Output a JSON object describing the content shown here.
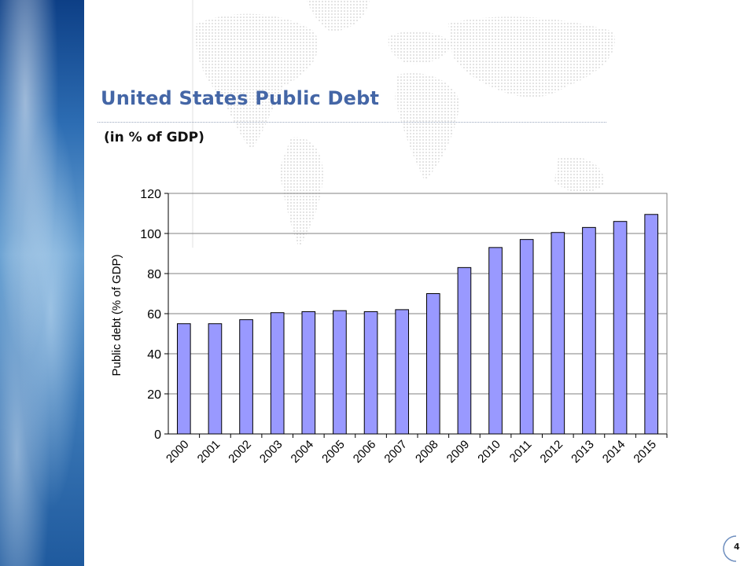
{
  "slide": {
    "title": "United States Public Debt",
    "subtitle": "(in % of GDP)",
    "page_number": "4"
  },
  "colors": {
    "title": "#4466a6",
    "bar_fill": "#9999ff",
    "bar_stroke": "#000000",
    "gridline": "#808080"
  },
  "chart_data": {
    "type": "bar",
    "title": "",
    "xlabel": "",
    "ylabel": "Public debt (% of GDP)",
    "categories": [
      "2000",
      "2001",
      "2002",
      "2003",
      "2004",
      "2005",
      "2006",
      "2007",
      "2008",
      "2009",
      "2010",
      "2011",
      "2012",
      "2013",
      "2014",
      "2015"
    ],
    "values": [
      55,
      55,
      57,
      60.5,
      61,
      61.5,
      61,
      62,
      70,
      83,
      93,
      97,
      100.5,
      103,
      106,
      109.5
    ],
    "ylim": [
      0,
      120
    ],
    "yticks": [
      0,
      20,
      40,
      60,
      80,
      100,
      120
    ],
    "grid": true,
    "legend": "none"
  }
}
